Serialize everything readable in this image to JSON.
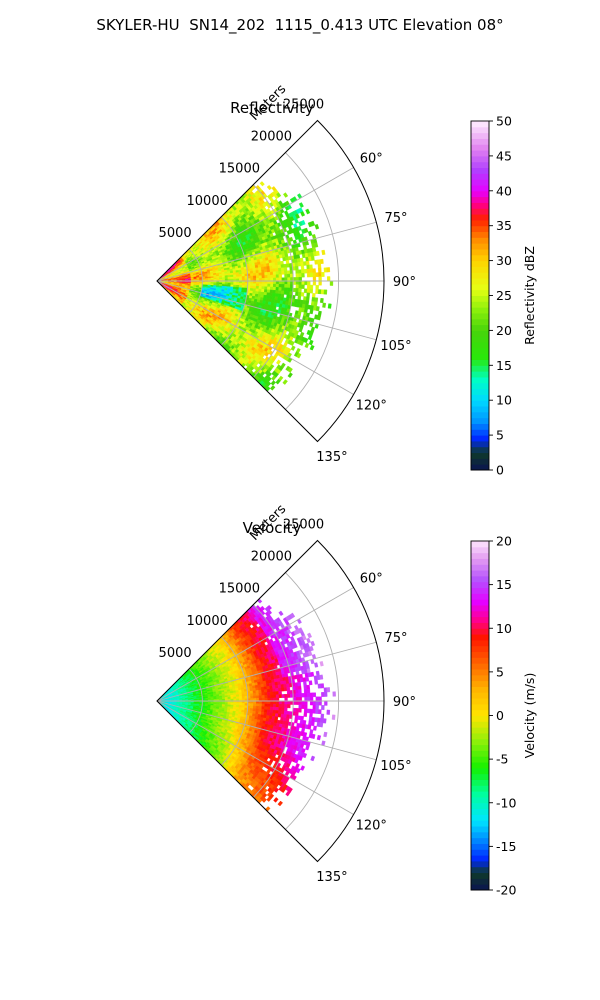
{
  "figure": {
    "suptitle": "SKYLER-HU  SN14_202  1115_0.413 UTC Elevation 08°"
  },
  "chart_data": [
    {
      "type": "polar-sector",
      "title": "Reflectivity",
      "radial_label": "Meters",
      "r_ticks": [
        5000,
        10000,
        15000,
        20000,
        25000
      ],
      "r_max": 25000,
      "theta_ticks_deg": [
        60,
        75,
        90,
        105,
        120,
        135
      ],
      "theta_tick_labels": [
        "60°",
        "75°",
        "90°",
        "105°",
        "120°",
        "135°"
      ],
      "theta_range_deg": [
        45,
        135
      ],
      "data_extent_m": 20000,
      "grid": true,
      "colorbar": {
        "label": "Reflectivity dBZ",
        "min": 0,
        "max": 50,
        "ticks": [
          0,
          5,
          10,
          15,
          20,
          25,
          30,
          35,
          40,
          45,
          50
        ],
        "colors": [
          {
            "v": 0,
            "c": "#0a1450"
          },
          {
            "v": 2.5,
            "c": "#0f3a2a"
          },
          {
            "v": 4.5,
            "c": "#0026ff"
          },
          {
            "v": 7,
            "c": "#0095ff"
          },
          {
            "v": 10,
            "c": "#00d9ff"
          },
          {
            "v": 13,
            "c": "#00ffc4"
          },
          {
            "v": 16,
            "c": "#29e80a"
          },
          {
            "v": 20,
            "c": "#47d40b"
          },
          {
            "v": 23,
            "c": "#8cf00a"
          },
          {
            "v": 26,
            "c": "#e6ff14"
          },
          {
            "v": 30,
            "c": "#ffd400"
          },
          {
            "v": 33,
            "c": "#ff8c00"
          },
          {
            "v": 36,
            "c": "#ff2000"
          },
          {
            "v": 38,
            "c": "#ff0080"
          },
          {
            "v": 40,
            "c": "#e600ff"
          },
          {
            "v": 43,
            "c": "#b040ff"
          },
          {
            "v": 46,
            "c": "#e080f0"
          },
          {
            "v": 50,
            "c": "#fff0ff"
          }
        ]
      }
    },
    {
      "type": "polar-sector",
      "title": "Velocity",
      "radial_label": "Meters",
      "r_ticks": [
        5000,
        10000,
        15000,
        20000,
        25000
      ],
      "r_max": 25000,
      "theta_ticks_deg": [
        60,
        75,
        90,
        105,
        120,
        135
      ],
      "theta_tick_labels": [
        "60°",
        "75°",
        "90°",
        "105°",
        "120°",
        "135°"
      ],
      "theta_range_deg": [
        45,
        135
      ],
      "data_extent_m": 20000,
      "grid": true,
      "colorbar": {
        "label": "Velocity (m/s)",
        "min": -20,
        "max": 20,
        "ticks": [
          -20,
          -15,
          -10,
          -5,
          0,
          5,
          10,
          15,
          20
        ],
        "colors": [
          {
            "v": -20,
            "c": "#0a1450"
          },
          {
            "v": -18,
            "c": "#0f3a2a"
          },
          {
            "v": -16.5,
            "c": "#0026ff"
          },
          {
            "v": -14,
            "c": "#0095ff"
          },
          {
            "v": -12,
            "c": "#00e6ff"
          },
          {
            "v": -9,
            "c": "#00ff9e"
          },
          {
            "v": -6,
            "c": "#14f000"
          },
          {
            "v": -3,
            "c": "#8cf00a"
          },
          {
            "v": 0,
            "c": "#ffe600"
          },
          {
            "v": 3,
            "c": "#ffb400"
          },
          {
            "v": 6,
            "c": "#ff6400"
          },
          {
            "v": 9,
            "c": "#ff1400"
          },
          {
            "v": 11,
            "c": "#ff0090"
          },
          {
            "v": 13,
            "c": "#e600ff"
          },
          {
            "v": 15.5,
            "c": "#b450ff"
          },
          {
            "v": 18,
            "c": "#e39cf0"
          },
          {
            "v": 20,
            "c": "#fde6ff"
          }
        ]
      }
    }
  ]
}
